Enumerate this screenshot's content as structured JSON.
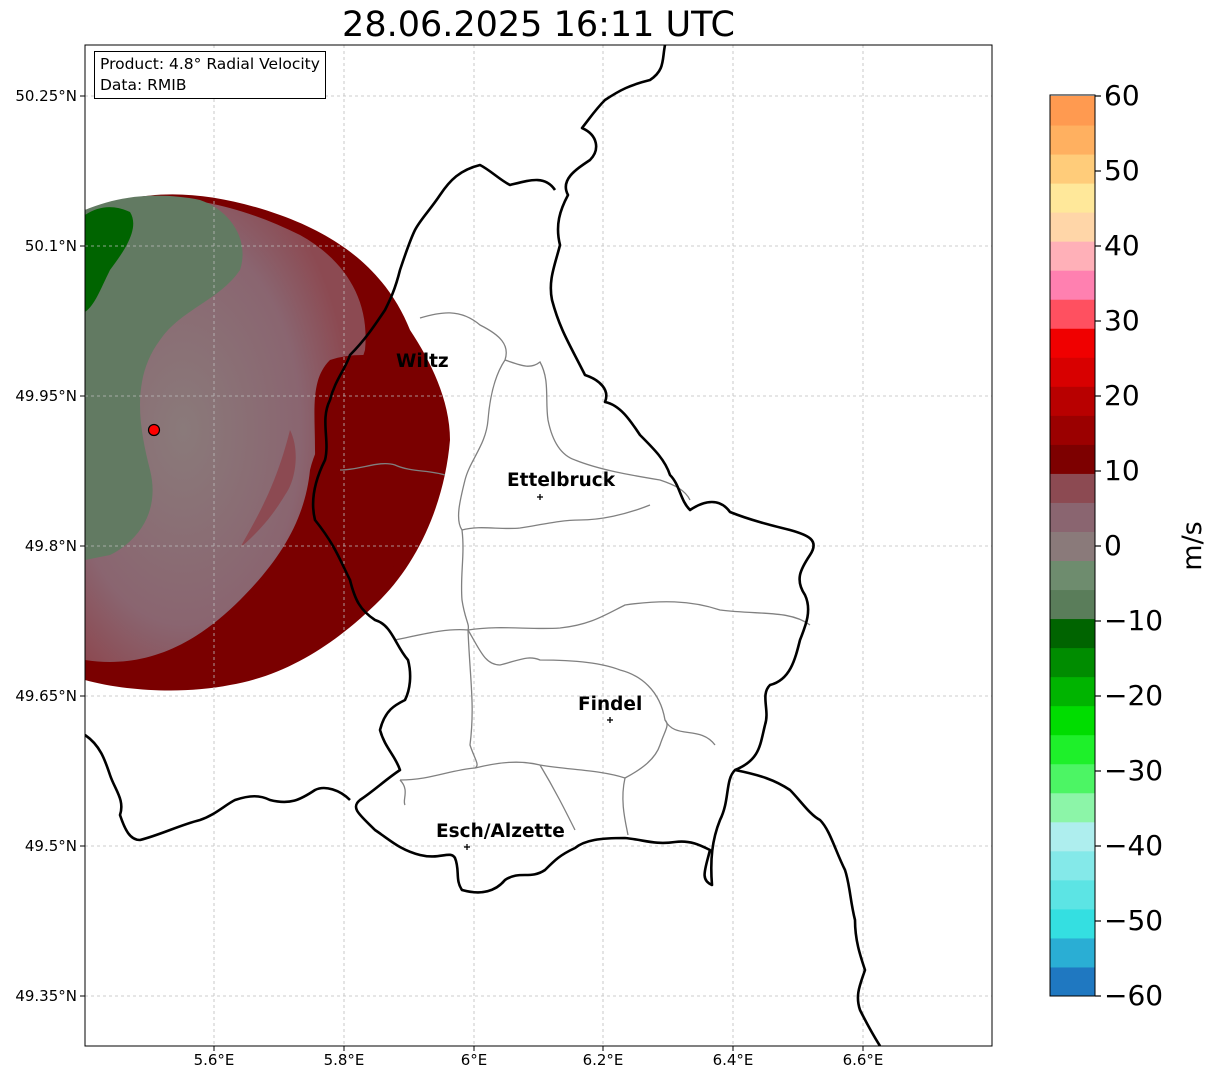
{
  "title": "28.06.2025 16:11 UTC",
  "info": {
    "product": "Product: 4.8° Radial Velocity",
    "data": "Data: RMIB"
  },
  "lat_ticks": [
    "50.25°N",
    "50.1°N",
    "49.95°N",
    "49.8°N",
    "49.65°N",
    "49.5°N",
    "49.35°N"
  ],
  "lon_ticks": [
    "5.6°E",
    "5.8°E",
    "6°E",
    "6.2°E",
    "6.4°E",
    "6.6°E"
  ],
  "cities": [
    {
      "name": "Wiltz"
    },
    {
      "name": "Ettelbruck"
    },
    {
      "name": "Findel"
    },
    {
      "name": "Esch/Alzette"
    }
  ],
  "colorbar": {
    "label": "m/s",
    "ticks": [
      "60",
      "50",
      "40",
      "30",
      "20",
      "10",
      "0",
      "−10",
      "−20",
      "−30",
      "−40",
      "−50",
      "−60"
    ],
    "min": -60,
    "max": 60,
    "colors": [
      "#1f78c1",
      "#2aaed4",
      "#34dfe1",
      "#5ce4e4",
      "#84e9e9",
      "#aeeeee",
      "#8cf5a8",
      "#4cf564",
      "#1ef02a",
      "#00dd00",
      "#00b400",
      "#008c00",
      "#006400",
      "#5a7d5a",
      "#6e8c6e",
      "#8a7a7a",
      "#8a6570",
      "#8c4a52",
      "#7d0000",
      "#9b0000",
      "#b80000",
      "#d80000",
      "#f00000",
      "#ff5060",
      "#ff80b0",
      "#ffb0b8",
      "#ffd6a8",
      "#ffe89a",
      "#ffcc7a",
      "#ffb060",
      "#ff9a50"
    ]
  },
  "colors": {
    "border": "#000000",
    "canton": "#808080",
    "grid": "#bdbdbd",
    "radar_site": "#ff0000"
  }
}
